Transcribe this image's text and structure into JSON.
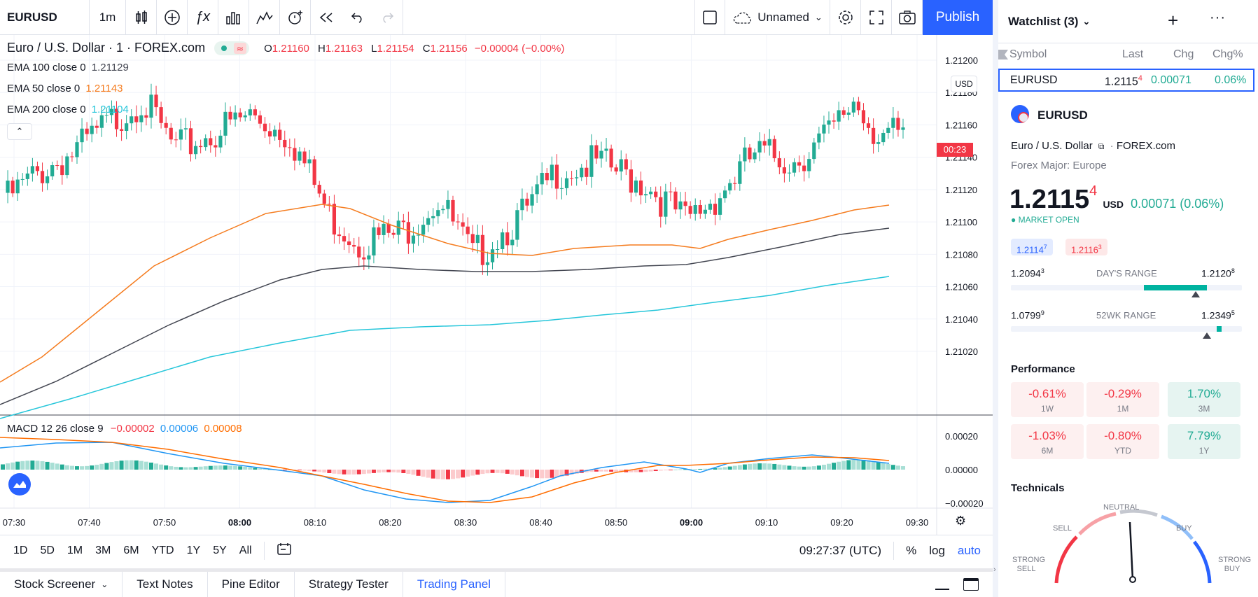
{
  "toolbar": {
    "symbol": "EURUSD",
    "interval": "1m",
    "layout_name": "Unnamed",
    "publish": "Publish"
  },
  "legend": {
    "title": "Euro / U.S. Dollar · 1 · FOREX.com",
    "ohlc": {
      "o": "1.21160",
      "h": "1.21163",
      "l": "1.21154",
      "c": "1.21156",
      "change": "−0.00004 (−0.00%)"
    },
    "ema100": {
      "label": "EMA 100 close 0",
      "value": "1.21129"
    },
    "ema50": {
      "label": "EMA 50 close 0",
      "value": "1.21143"
    },
    "ema200": {
      "label": "EMA 200 close 0",
      "value": "1.21104"
    },
    "macd": {
      "label": "MACD 12 26 close 9",
      "hist": "−0.00002",
      "macd": "0.00006",
      "signal": "0.00008"
    }
  },
  "price_axis": {
    "currency": "USD",
    "ticks": [
      "1.21200",
      "1.21180",
      "1.21160",
      "1.21140",
      "1.21120",
      "1.21100",
      "1.21080",
      "1.21060",
      "1.21040",
      "1.21020"
    ],
    "countdown": "00:23",
    "macd_ticks": [
      "0.00020",
      "0.00000",
      "−0.00020"
    ]
  },
  "time_axis": [
    "07:30",
    "07:40",
    "07:50",
    "08:00",
    "08:10",
    "08:20",
    "08:30",
    "08:40",
    "08:50",
    "09:00",
    "09:10",
    "09:20",
    "09:30"
  ],
  "ranges": [
    "1D",
    "5D",
    "1M",
    "3M",
    "6M",
    "YTD",
    "1Y",
    "5Y",
    "All"
  ],
  "clock": "09:27:37 (UTC)",
  "scale_opts": {
    "pct": "%",
    "log": "log",
    "auto": "auto"
  },
  "bottom_tabs": [
    "Stock Screener",
    "Text Notes",
    "Pine Editor",
    "Strategy Tester",
    "Trading Panel"
  ],
  "watchlist": {
    "title": "Watchlist (3)",
    "columns": {
      "symbol": "Symbol",
      "last": "Last",
      "chg": "Chg",
      "chgp": "Chg%"
    },
    "row": {
      "symbol": "EURUSD",
      "last": "1.2115",
      "last_sup": "4",
      "chg": "0.00071",
      "chgp": "0.06%"
    }
  },
  "details": {
    "symbol": "EURUSD",
    "name": "Euro / U.S. Dollar",
    "exchange": "FOREX.com",
    "category": "Forex Major: Europe",
    "price": "1.2115",
    "price_sup": "4",
    "currency": "USD",
    "change": "0.00071 (0.06%)",
    "status": "MARKET OPEN",
    "bid": "1.2114",
    "bid_sup": "7",
    "ask": "1.2116",
    "ask_sup": "3",
    "day_low": "1.2094",
    "day_low_sup": "3",
    "day_label": "DAY'S RANGE",
    "day_high": "1.2120",
    "day_high_sup": "8",
    "wk_low": "1.0799",
    "wk_low_sup": "9",
    "wk_label": "52WK RANGE",
    "wk_high": "1.2349",
    "wk_high_sup": "5"
  },
  "performance": {
    "title": "Performance",
    "items": [
      {
        "value": "-0.61%",
        "label": "1W"
      },
      {
        "value": "-0.29%",
        "label": "1M"
      },
      {
        "value": "1.70%",
        "label": "3M"
      },
      {
        "value": "-1.03%",
        "label": "6M"
      },
      {
        "value": "-0.80%",
        "label": "YTD"
      },
      {
        "value": "7.79%",
        "label": "1Y"
      }
    ]
  },
  "technicals": {
    "title": "Technicals",
    "labels": {
      "strong_sell": "STRONG SELL",
      "sell": "SELL",
      "neutral": "NEUTRAL",
      "buy": "BUY",
      "strong_buy": "STRONG BUY"
    }
  },
  "colors": {
    "up": "#22ab94",
    "down": "#f23645",
    "ema50": "#f57c1f",
    "ema100": "#434651",
    "ema200": "#26c6da",
    "macd": "#2196f3",
    "signal": "#ff6d00",
    "accent": "#2962ff"
  }
}
